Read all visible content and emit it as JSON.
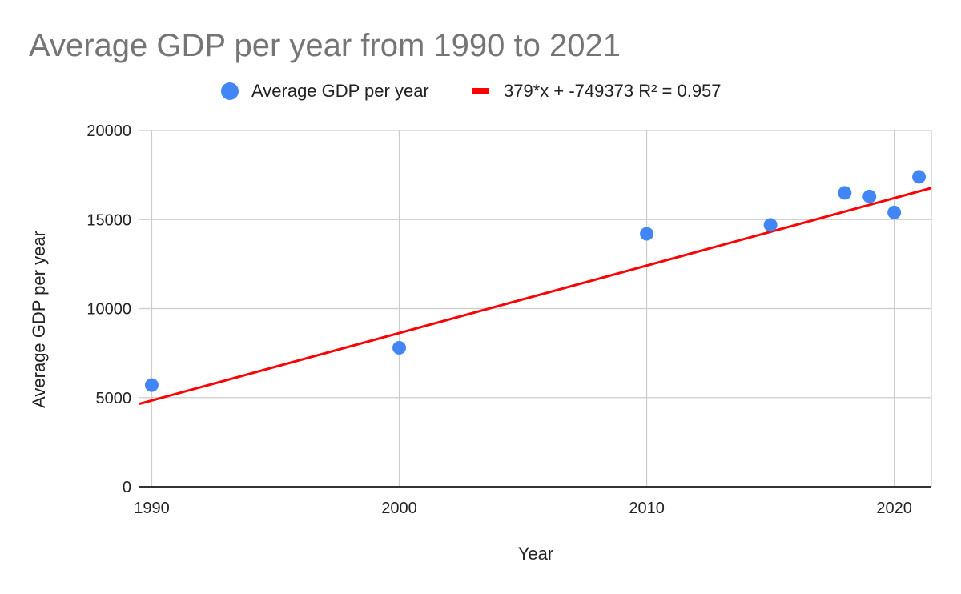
{
  "chart_data": {
    "type": "scatter",
    "title": "Average GDP per year from 1990 to 2021",
    "xlabel": "Year",
    "ylabel": "Average GDP per year",
    "xlim": [
      1989.5,
      2021.5
    ],
    "ylim": [
      0,
      20000
    ],
    "x_ticks": [
      "1990",
      "2000",
      "2010",
      "2020"
    ],
    "y_ticks": [
      "0",
      "5000",
      "10000",
      "15000",
      "20000"
    ],
    "grid": true,
    "legend_position": "top",
    "series": [
      {
        "name": "Average GDP per year",
        "color": "#4285f4",
        "x": [
          1990,
          2000,
          2010,
          2015,
          2018,
          2019,
          2020,
          2021
        ],
        "y": [
          5700,
          7800,
          14200,
          14700,
          16500,
          16300,
          15400,
          17400
        ]
      }
    ],
    "trendline": {
      "label": "379*x + -749373 R² = 0.957",
      "color": "#ff0000",
      "slope": 379,
      "intercept": -749373
    }
  }
}
